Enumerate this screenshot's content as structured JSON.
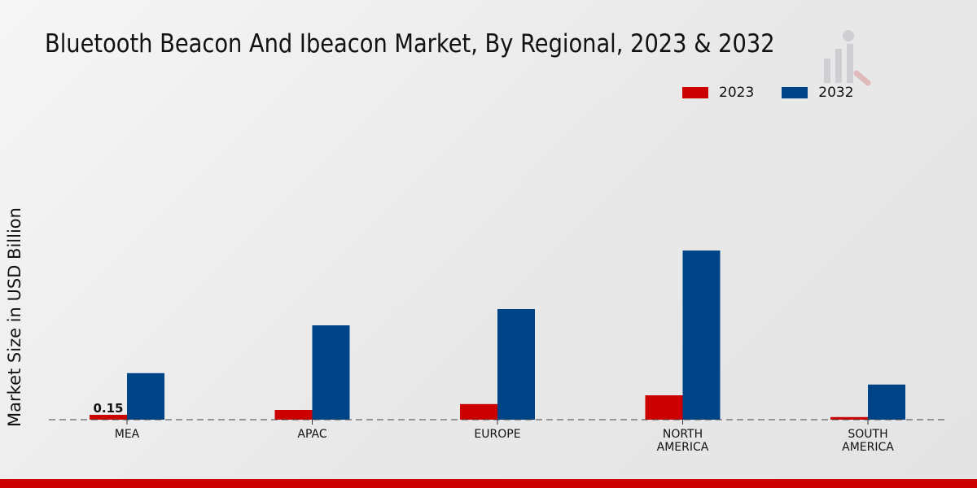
{
  "chart_data": {
    "type": "bar",
    "title": "Bluetooth Beacon And Ibeacon Market, By Regional, 2023 & 2032",
    "xlabel": "",
    "ylabel": "Market Size in USD Billion",
    "categories": [
      "MEA",
      "APAC",
      "EUROPE",
      "NORTH AMERICA",
      "SOUTH AMERICA"
    ],
    "category_lines": [
      [
        "MEA"
      ],
      [
        "APAC"
      ],
      [
        "EUROPE"
      ],
      [
        "NORTH",
        "AMERICA"
      ],
      [
        "SOUTH",
        "AMERICA"
      ]
    ],
    "series": [
      {
        "name": "2023",
        "color": "#cc0000",
        "values": [
          0.15,
          0.3,
          0.48,
          0.75,
          0.08
        ]
      },
      {
        "name": "2032",
        "color": "#004488",
        "values": [
          1.43,
          2.9,
          3.4,
          5.2,
          1.08
        ]
      }
    ],
    "data_labels": [
      {
        "series": "2023",
        "category": "MEA",
        "text": "0.15"
      }
    ],
    "ylim": [
      0,
      6
    ],
    "grid": false,
    "legend_position": "top-right"
  }
}
